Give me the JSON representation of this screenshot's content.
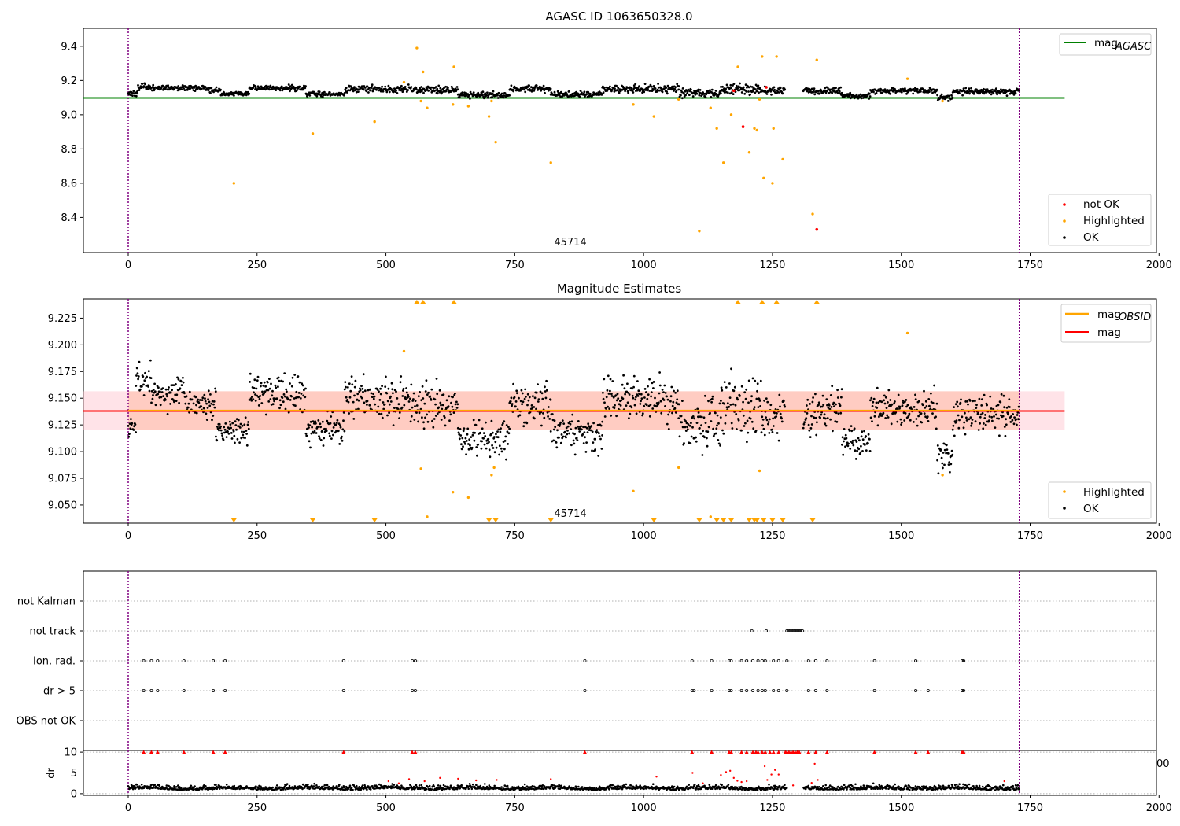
{
  "chart_data": [
    {
      "type": "scatter",
      "title": "AGASC ID 1063650328.0",
      "xlim": [
        -87,
        1995
      ],
      "ylim": [
        8.195,
        9.505
      ],
      "yticks": [
        "9.4",
        "9.2",
        "9.0",
        "8.8",
        "8.6",
        "8.4"
      ],
      "xticks": [
        "0",
        "250",
        "500",
        "750",
        "1000",
        "1250",
        "1500",
        "1750",
        "2000"
      ],
      "obsid_label": "45714",
      "obsid_boundaries": [
        0,
        1729
      ],
      "lines": [
        {
          "name": "mag_AGASC",
          "y": 9.098,
          "x": [
            -87,
            1817
          ],
          "color": "#008000"
        }
      ],
      "legend_lines": [
        {
          "name": "mag",
          "sub": "AGASC",
          "color": "#008000"
        }
      ],
      "legend_points": [
        {
          "name": "not OK",
          "color": "#ff0000"
        },
        {
          "name": "Highlighted",
          "color": "#ffa500"
        },
        {
          "name": "OK",
          "color": "#000000"
        }
      ],
      "ok_segments": [
        {
          "x": [
            0,
            18
          ],
          "base": 9.12,
          "noise": 0.008
        },
        {
          "x": [
            18,
            50
          ],
          "base": 9.162,
          "noise": 0.01
        },
        {
          "x": [
            50,
            150
          ],
          "base": 9.157,
          "noise": 0.008
        },
        {
          "x": [
            150,
            180
          ],
          "base": 9.145,
          "noise": 0.008
        },
        {
          "x": [
            180,
            235
          ],
          "base": 9.122,
          "noise": 0.007
        },
        {
          "x": [
            235,
            345
          ],
          "base": 9.157,
          "noise": 0.008
        },
        {
          "x": [
            345,
            420
          ],
          "base": 9.12,
          "noise": 0.007
        },
        {
          "x": [
            420,
            550
          ],
          "base": 9.15,
          "noise": 0.01
        },
        {
          "x": [
            550,
            640
          ],
          "base": 9.148,
          "noise": 0.012
        },
        {
          "x": [
            640,
            740
          ],
          "base": 9.115,
          "noise": 0.008
        },
        {
          "x": [
            740,
            820
          ],
          "base": 9.15,
          "noise": 0.01
        },
        {
          "x": [
            820,
            920
          ],
          "base": 9.118,
          "noise": 0.008
        },
        {
          "x": [
            920,
            1070
          ],
          "base": 9.15,
          "noise": 0.012
        },
        {
          "x": [
            1070,
            1150
          ],
          "base": 9.125,
          "noise": 0.012
        },
        {
          "x": [
            1150,
            1230
          ],
          "base": 9.148,
          "noise": 0.015
        },
        {
          "x": [
            1230,
            1275
          ],
          "base": 9.14,
          "noise": 0.012
        },
        {
          "x": [
            1310,
            1385
          ],
          "base": 9.14,
          "noise": 0.01
        },
        {
          "x": [
            1385,
            1440
          ],
          "base": 9.11,
          "noise": 0.008
        },
        {
          "x": [
            1440,
            1570
          ],
          "base": 9.142,
          "noise": 0.008
        },
        {
          "x": [
            1570,
            1600
          ],
          "base": 9.095,
          "noise": 0.01
        },
        {
          "x": [
            1600,
            1729
          ],
          "base": 9.135,
          "noise": 0.009
        }
      ],
      "highlighted_points": [
        {
          "x": 205,
          "y": 8.6
        },
        {
          "x": 358,
          "y": 8.89
        },
        {
          "x": 478,
          "y": 8.96
        },
        {
          "x": 535,
          "y": 9.19
        },
        {
          "x": 560,
          "y": 9.39
        },
        {
          "x": 568,
          "y": 9.08
        },
        {
          "x": 572,
          "y": 9.25
        },
        {
          "x": 580,
          "y": 9.04
        },
        {
          "x": 630,
          "y": 9.06
        },
        {
          "x": 632,
          "y": 9.28
        },
        {
          "x": 660,
          "y": 9.05
        },
        {
          "x": 700,
          "y": 8.99
        },
        {
          "x": 705,
          "y": 9.08
        },
        {
          "x": 713,
          "y": 8.84
        },
        {
          "x": 820,
          "y": 8.72
        },
        {
          "x": 980,
          "y": 9.06
        },
        {
          "x": 1020,
          "y": 8.99
        },
        {
          "x": 1068,
          "y": 9.09
        },
        {
          "x": 1108,
          "y": 8.32
        },
        {
          "x": 1130,
          "y": 9.04
        },
        {
          "x": 1142,
          "y": 8.92
        },
        {
          "x": 1155,
          "y": 8.72
        },
        {
          "x": 1170,
          "y": 9.0
        },
        {
          "x": 1183,
          "y": 9.28
        },
        {
          "x": 1205,
          "y": 8.78
        },
        {
          "x": 1215,
          "y": 8.92
        },
        {
          "x": 1220,
          "y": 8.91
        },
        {
          "x": 1225,
          "y": 9.09
        },
        {
          "x": 1230,
          "y": 9.34
        },
        {
          "x": 1233,
          "y": 8.63
        },
        {
          "x": 1250,
          "y": 8.6
        },
        {
          "x": 1252,
          "y": 8.92
        },
        {
          "x": 1258,
          "y": 9.34
        },
        {
          "x": 1270,
          "y": 8.74
        },
        {
          "x": 1328,
          "y": 8.42
        },
        {
          "x": 1336,
          "y": 9.32
        },
        {
          "x": 1512,
          "y": 9.21
        },
        {
          "x": 1580,
          "y": 9.08
        }
      ],
      "not_ok_points": [
        {
          "x": 1175,
          "y": 9.14
        },
        {
          "x": 1193,
          "y": 8.93
        },
        {
          "x": 1238,
          "y": 9.16
        },
        {
          "x": 1336,
          "y": 8.33
        }
      ]
    },
    {
      "type": "scatter",
      "title": "Magnitude Estimates",
      "xlim": [
        -87,
        1995
      ],
      "ylim": [
        9.033,
        9.243
      ],
      "yticks": [
        "9.225",
        "9.200",
        "9.175",
        "9.150",
        "9.125",
        "9.100",
        "9.075",
        "9.050"
      ],
      "xticks": [
        "0",
        "250",
        "500",
        "750",
        "1000",
        "1250",
        "1500",
        "1750",
        "2000"
      ],
      "obsid_label": "45714",
      "obsid_boundaries": [
        0,
        1729
      ],
      "band": {
        "y": [
          9.1205,
          9.1565
        ],
        "x": [
          -87,
          1817
        ],
        "colors": [
          "#ffc0cb",
          "#ffa07a"
        ]
      },
      "lines": [
        {
          "name": "mag_OBSID",
          "y": 9.1385,
          "x": [
            0,
            1729
          ],
          "color": "#ffa500"
        },
        {
          "name": "mag",
          "y": 9.138,
          "x": [
            -87,
            1817
          ],
          "color": "#ff0000"
        }
      ],
      "legend_lines": [
        {
          "name": "mag",
          "sub": "OBSID",
          "color": "#ffa500"
        },
        {
          "name": "mag",
          "sub": "",
          "color": "#ff0000"
        }
      ],
      "legend_points": [
        {
          "name": "Highlighted",
          "color": "#ffa500"
        },
        {
          "name": "OK",
          "color": "#000000"
        }
      ],
      "ok_segments": [
        {
          "x": [
            0,
            15
          ],
          "base": 9.123,
          "noise": 0.006
        },
        {
          "x": [
            15,
            45
          ],
          "base": 9.168,
          "noise": 0.008
        },
        {
          "x": [
            45,
            110
          ],
          "base": 9.155,
          "noise": 0.008
        },
        {
          "x": [
            110,
            170
          ],
          "base": 9.145,
          "noise": 0.007
        },
        {
          "x": [
            170,
            235
          ],
          "base": 9.118,
          "noise": 0.007
        },
        {
          "x": [
            235,
            345
          ],
          "base": 9.155,
          "noise": 0.009
        },
        {
          "x": [
            345,
            420
          ],
          "base": 9.122,
          "noise": 0.007
        },
        {
          "x": [
            420,
            550
          ],
          "base": 9.15,
          "noise": 0.01
        },
        {
          "x": [
            550,
            640
          ],
          "base": 9.142,
          "noise": 0.012
        },
        {
          "x": [
            640,
            740
          ],
          "base": 9.112,
          "noise": 0.008
        },
        {
          "x": [
            740,
            820
          ],
          "base": 9.145,
          "noise": 0.01
        },
        {
          "x": [
            820,
            920
          ],
          "base": 9.117,
          "noise": 0.008
        },
        {
          "x": [
            920,
            1070
          ],
          "base": 9.148,
          "noise": 0.011
        },
        {
          "x": [
            1070,
            1150
          ],
          "base": 9.127,
          "noise": 0.013
        },
        {
          "x": [
            1150,
            1230
          ],
          "base": 9.14,
          "noise": 0.014
        },
        {
          "x": [
            1230,
            1275
          ],
          "base": 9.133,
          "noise": 0.01
        },
        {
          "x": [
            1310,
            1385
          ],
          "base": 9.137,
          "noise": 0.01
        },
        {
          "x": [
            1385,
            1440
          ],
          "base": 9.108,
          "noise": 0.007
        },
        {
          "x": [
            1440,
            1570
          ],
          "base": 9.14,
          "noise": 0.008
        },
        {
          "x": [
            1570,
            1600
          ],
          "base": 9.097,
          "noise": 0.008
        },
        {
          "x": [
            1600,
            1729
          ],
          "base": 9.135,
          "noise": 0.009
        }
      ],
      "highlighted_points": [
        {
          "x": 535,
          "y": 9.194
        },
        {
          "x": 568,
          "y": 9.084
        },
        {
          "x": 580,
          "y": 9.039
        },
        {
          "x": 630,
          "y": 9.062
        },
        {
          "x": 660,
          "y": 9.057
        },
        {
          "x": 705,
          "y": 9.078
        },
        {
          "x": 710,
          "y": 9.085
        },
        {
          "x": 980,
          "y": 9.063
        },
        {
          "x": 1068,
          "y": 9.085
        },
        {
          "x": 1130,
          "y": 9.039
        },
        {
          "x": 1225,
          "y": 9.082
        },
        {
          "x": 1512,
          "y": 9.211
        },
        {
          "x": 1580,
          "y": 9.078
        }
      ],
      "clipped_high_x": [
        560,
        572,
        632,
        1183,
        1230,
        1258,
        1336
      ],
      "clipped_low_x": [
        205,
        358,
        478,
        700,
        713,
        820,
        1020,
        1108,
        1142,
        1155,
        1170,
        1205,
        1215,
        1220,
        1233,
        1250,
        1270,
        1328
      ]
    },
    {
      "type": "scatter",
      "title": "",
      "xlim": [
        -87,
        1995
      ],
      "categories": [
        "not Kalman",
        "not track",
        "Ion. rad.",
        "dr > 5",
        "OBS not OK"
      ],
      "flag_x": {
        "not Kalman": [],
        "not track": [
          1210,
          1238,
          1278,
          1281,
          1284,
          1287,
          1290,
          1293,
          1296,
          1299,
          1302,
          1305,
          1308
        ],
        "Ion. rad.": [
          30,
          45,
          57,
          108,
          165,
          188,
          418,
          551,
          557,
          886,
          1094,
          1132,
          1166,
          1170,
          1190,
          1200,
          1212,
          1222,
          1230,
          1236,
          1252,
          1262,
          1278,
          1320,
          1334,
          1356,
          1448,
          1528,
          1618,
          1621
        ],
        "dr > 5": [
          30,
          45,
          57,
          108,
          165,
          188,
          418,
          551,
          557,
          886,
          1094,
          1098,
          1132,
          1166,
          1170,
          1190,
          1200,
          1212,
          1222,
          1230,
          1236,
          1252,
          1262,
          1278,
          1320,
          1334,
          1356,
          1448,
          1528,
          1552,
          1618,
          1621
        ],
        "OBS not OK": []
      }
    },
    {
      "type": "scatter",
      "title": "",
      "xlim": [
        -87,
        1995
      ],
      "ylim": [
        -0.4,
        10.4
      ],
      "ylabel": "dr",
      "yticks": [
        "10",
        "5",
        "0"
      ],
      "xticks": [
        "0",
        "250",
        "500",
        "750",
        "1000",
        "1250",
        "1500",
        "1750",
        "2000"
      ],
      "stray_tick": "00",
      "clip_value": 10,
      "ok_base": 1.0,
      "ok_noise": 0.5,
      "dr_red_points": [
        {
          "x": 505,
          "y": 3.0
        },
        {
          "x": 525,
          "y": 2.5
        },
        {
          "x": 545,
          "y": 3.5
        },
        {
          "x": 575,
          "y": 3.0
        },
        {
          "x": 605,
          "y": 3.8
        },
        {
          "x": 640,
          "y": 3.6
        },
        {
          "x": 675,
          "y": 3.2
        },
        {
          "x": 715,
          "y": 3.3
        },
        {
          "x": 820,
          "y": 3.5
        },
        {
          "x": 1025,
          "y": 4.1
        },
        {
          "x": 1095,
          "y": 5.0
        },
        {
          "x": 1115,
          "y": 2.5
        },
        {
          "x": 1150,
          "y": 4.5
        },
        {
          "x": 1160,
          "y": 5.2
        },
        {
          "x": 1168,
          "y": 5.5
        },
        {
          "x": 1175,
          "y": 3.8
        },
        {
          "x": 1182,
          "y": 3.1
        },
        {
          "x": 1190,
          "y": 2.8
        },
        {
          "x": 1200,
          "y": 3.0
        },
        {
          "x": 1235,
          "y": 6.6
        },
        {
          "x": 1240,
          "y": 3.3
        },
        {
          "x": 1248,
          "y": 4.6
        },
        {
          "x": 1255,
          "y": 5.7
        },
        {
          "x": 1262,
          "y": 4.6
        },
        {
          "x": 1290,
          "y": 2.0
        },
        {
          "x": 1326,
          "y": 2.6
        },
        {
          "x": 1332,
          "y": 7.2
        },
        {
          "x": 1338,
          "y": 3.3
        },
        {
          "x": 1700,
          "y": 3.0
        }
      ],
      "dr_clipped_x": [
        30,
        45,
        57,
        108,
        165,
        188,
        418,
        551,
        557,
        886,
        1094,
        1132,
        1166,
        1170,
        1190,
        1200,
        1212,
        1218,
        1222,
        1230,
        1236,
        1245,
        1252,
        1262,
        1275,
        1278,
        1282,
        1286,
        1290,
        1294,
        1298,
        1302,
        1320,
        1334,
        1356,
        1448,
        1528,
        1552,
        1618,
        1621
      ]
    }
  ]
}
